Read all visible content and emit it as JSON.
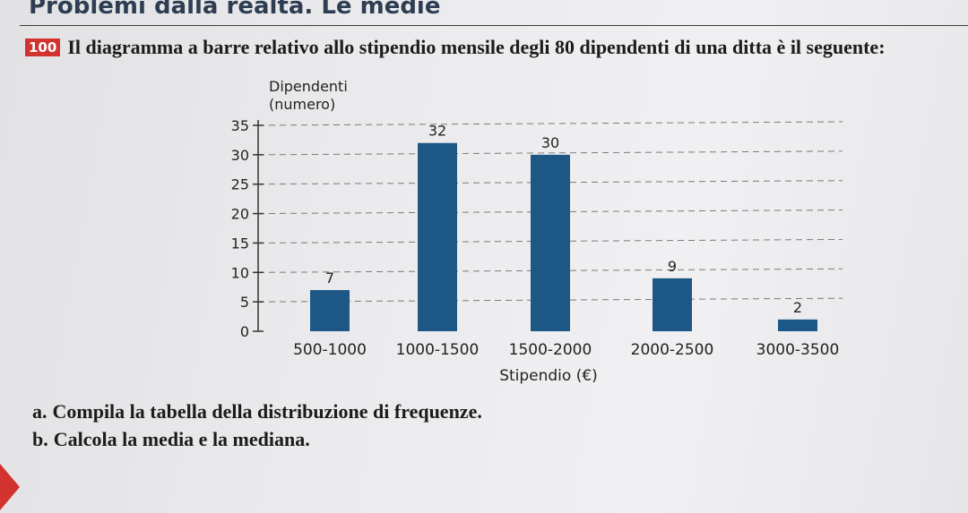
{
  "header": {
    "title": "Problemi dalla realtà. Le medie"
  },
  "problem": {
    "number": "100",
    "text": "Il diagramma a barre relativo allo stipendio mensile degli 80 dipendenti di una ditta è il seguente:"
  },
  "chart_data": {
    "type": "bar",
    "ylabel_line1": "Dipendenti",
    "ylabel_line2": "(numero)",
    "xlabel": "Stipendio (€)",
    "categories": [
      "500-1000",
      "1000-1500",
      "1500-2000",
      "2000-2500",
      "3000-3500"
    ],
    "values": [
      7,
      32,
      30,
      9,
      2
    ],
    "ylim": [
      0,
      35
    ],
    "yticks": [
      0,
      5,
      10,
      15,
      20,
      25,
      30,
      35
    ],
    "grid": "dashed horizontal",
    "bar_color": "#1d5786"
  },
  "questions": [
    {
      "letter": "a.",
      "text": "Compila la tabella della distribuzione di frequenze."
    },
    {
      "letter": "b.",
      "text": "Calcola la media e la mediana."
    }
  ]
}
